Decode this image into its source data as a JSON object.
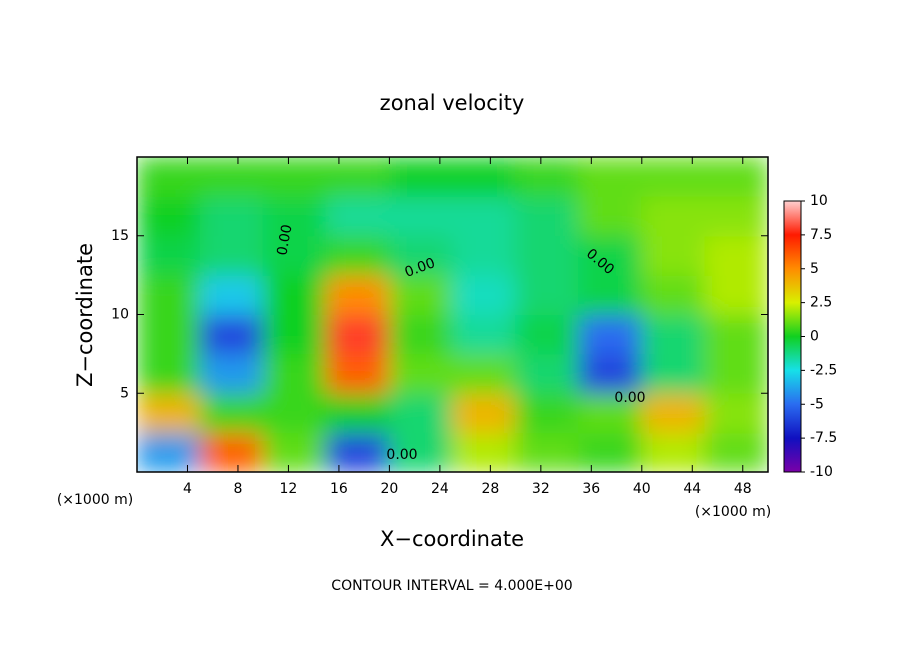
{
  "chart_data": {
    "type": "contour",
    "title": "zonal velocity",
    "xlabel": "X−coordinate",
    "ylabel": "Z−coordinate",
    "x_unit_label": "(×1000 m)",
    "footer": "CONTOUR INTERVAL = 4.000E+00",
    "contour_labels": [
      "0.00",
      "0.00",
      "0.00",
      "0.00",
      "0.00"
    ],
    "xlim": [
      0,
      50
    ],
    "ylim": [
      0,
      20
    ],
    "xticks": [
      4,
      8,
      12,
      16,
      20,
      24,
      28,
      32,
      36,
      40,
      44,
      48
    ],
    "yticks": [
      5,
      10,
      15
    ],
    "x": [
      2.5,
      7.5,
      12.5,
      17.5,
      22.5,
      27.5,
      32.5,
      37.5,
      42.5,
      47.5
    ],
    "z": [
      1.25,
      3.75,
      6.25,
      8.75,
      11.25,
      13.75,
      16.25,
      18.75
    ],
    "values": [
      [
        -4,
        6,
        1,
        -6,
        -1,
        2,
        1,
        0.5,
        2,
        1
      ],
      [
        4,
        0.5,
        0.5,
        0,
        -1,
        4,
        0.5,
        1,
        4,
        1.5
      ],
      [
        0.5,
        -4,
        0.5,
        6,
        1,
        1,
        -1,
        -6,
        -1,
        1
      ],
      [
        0.5,
        -6,
        0,
        8,
        0.5,
        -1.5,
        -0.5,
        -5,
        -1,
        1
      ],
      [
        0.5,
        -3,
        0,
        5,
        1,
        -2,
        -1,
        -0.5,
        1,
        2
      ],
      [
        -0.5,
        -1,
        -0.5,
        0.5,
        -1,
        -1.5,
        -1,
        -0.5,
        1.5,
        2
      ],
      [
        0,
        -1,
        -0.5,
        -1.5,
        -1.5,
        -1.5,
        -1,
        1,
        1.5,
        1.5
      ],
      [
        0.5,
        0.5,
        0.5,
        0.5,
        0,
        0,
        0.5,
        1,
        1,
        1
      ]
    ],
    "zticks": [
      -10,
      -7.5,
      -5,
      -2.5,
      0,
      2.5,
      5,
      7.5,
      10
    ],
    "zcolors": [
      "#7a00a8",
      "#1010c0",
      "#2a6cf0",
      "#16e0e8",
      "#10d020",
      "#d8f000",
      "#ff8c00",
      "#ff1a00",
      "#ffd0d0"
    ]
  }
}
